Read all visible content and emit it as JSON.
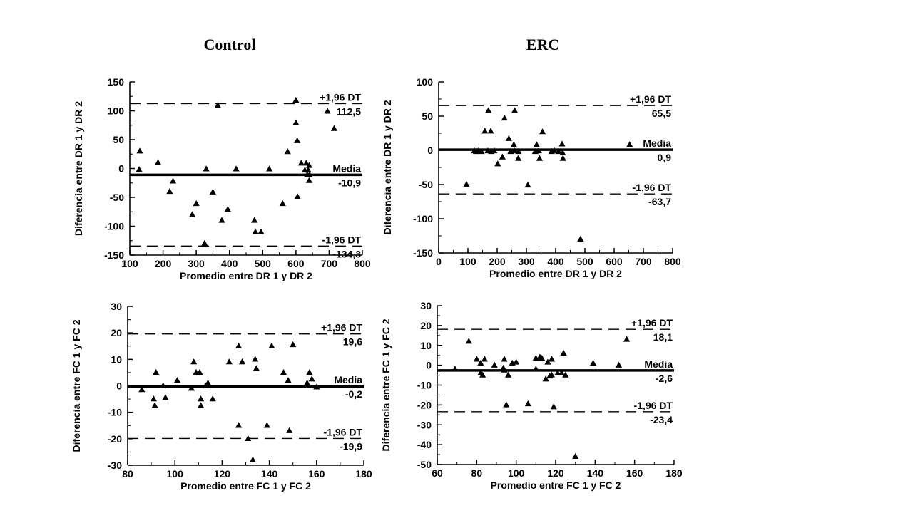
{
  "page": {
    "background": "#ffffff",
    "text_color": "#000000"
  },
  "column_titles": {
    "left": "Control",
    "right": "ERC"
  },
  "chart_data": [
    {
      "id": "control-dr",
      "type": "scatter",
      "group": "Control",
      "xlabel": "Promedio entre DR 1 y DR 2",
      "ylabel": "Diferencia entre DR 1 y DR 2",
      "xlim": [
        100,
        800
      ],
      "ylim": [
        -150,
        150
      ],
      "xticks": [
        100,
        200,
        300,
        400,
        500,
        600,
        700,
        800
      ],
      "yticks": [
        -150,
        -100,
        -50,
        0,
        50,
        100,
        150
      ],
      "x_minor_step": 50,
      "y_minor_step": 25,
      "marker": "triangle",
      "marker_color": "#000000",
      "grid": false,
      "lines": [
        {
          "name": "upper_loa",
          "label": "+1,96 DT",
          "value_label": "112,5",
          "y": 112.5,
          "style": "dashed"
        },
        {
          "name": "mean",
          "label": "Media",
          "value_label": "-10,9",
          "y": -10.9,
          "style": "solid"
        },
        {
          "name": "lower_loa",
          "label": "-1,96 DT",
          "value_label": "-134,3",
          "y": -134.3,
          "style": "dashed"
        }
      ],
      "points": [
        [
          130,
          30
        ],
        [
          128,
          -2
        ],
        [
          185,
          10
        ],
        [
          220,
          -40
        ],
        [
          230,
          -22
        ],
        [
          288,
          -80
        ],
        [
          300,
          -61
        ],
        [
          325,
          -130
        ],
        [
          330,
          -1
        ],
        [
          350,
          -41
        ],
        [
          365,
          109
        ],
        [
          377,
          -90
        ],
        [
          395,
          -71
        ],
        [
          420,
          -1
        ],
        [
          475,
          -90
        ],
        [
          478,
          -110
        ],
        [
          495,
          -110
        ],
        [
          520,
          -1
        ],
        [
          560,
          -61
        ],
        [
          575,
          29
        ],
        [
          600,
          118
        ],
        [
          600,
          79
        ],
        [
          604,
          48
        ],
        [
          605,
          -49
        ],
        [
          616,
          9
        ],
        [
          631,
          9
        ],
        [
          640,
          5
        ],
        [
          627,
          -3
        ],
        [
          637,
          -3
        ],
        [
          634,
          -11
        ],
        [
          641,
          -11
        ],
        [
          640,
          -21
        ],
        [
          695,
          99
        ],
        [
          715,
          69
        ]
      ]
    },
    {
      "id": "erc-dr",
      "type": "scatter",
      "group": "ERC",
      "xlabel": "Promedio entre DR 1 y DR 2",
      "ylabel": "Diferencia entre DR 1 y DR 2",
      "xlim": [
        0,
        800
      ],
      "ylim": [
        -150,
        100
      ],
      "xticks": [
        0,
        100,
        200,
        300,
        400,
        500,
        600,
        700,
        800
      ],
      "yticks": [
        -150,
        -100,
        -50,
        0,
        50,
        100
      ],
      "x_minor_step": 50,
      "y_minor_step": 25,
      "marker": "triangle",
      "marker_color": "#000000",
      "grid": false,
      "lines": [
        {
          "name": "upper_loa",
          "label": "+1,96 DT",
          "value_label": "65,5",
          "y": 65.5,
          "style": "dashed"
        },
        {
          "name": "mean",
          "label": "Media",
          "value_label": "0,9",
          "y": 0.9,
          "style": "solid"
        },
        {
          "name": "lower_loa",
          "label": "-1,96 DT",
          "value_label": "-63,7",
          "y": -63.7,
          "style": "dashed"
        }
      ],
      "points": [
        [
          95,
          -50
        ],
        [
          122,
          -1
        ],
        [
          128,
          -2
        ],
        [
          135,
          -1
        ],
        [
          146,
          -2
        ],
        [
          158,
          28
        ],
        [
          168,
          -1
        ],
        [
          170,
          58
        ],
        [
          178,
          28
        ],
        [
          180,
          -2
        ],
        [
          190,
          -1
        ],
        [
          202,
          -20
        ],
        [
          218,
          -10
        ],
        [
          225,
          47
        ],
        [
          240,
          17
        ],
        [
          246,
          -2
        ],
        [
          257,
          8
        ],
        [
          259,
          -1
        ],
        [
          260,
          58
        ],
        [
          272,
          -12
        ],
        [
          273,
          -2
        ],
        [
          305,
          -51
        ],
        [
          330,
          -2
        ],
        [
          335,
          8
        ],
        [
          342,
          -1
        ],
        [
          345,
          -12
        ],
        [
          355,
          27
        ],
        [
          386,
          -2
        ],
        [
          396,
          -1
        ],
        [
          410,
          -2
        ],
        [
          422,
          9
        ],
        [
          424,
          -4
        ],
        [
          425,
          -12
        ],
        [
          485,
          -130
        ],
        [
          653,
          8
        ]
      ]
    },
    {
      "id": "control-fc",
      "type": "scatter",
      "group": "Control",
      "xlabel": "Promedio entre FC 1 y FC 2",
      "ylabel": "Diferencia entre FC 1 y FC 2",
      "xlim": [
        80,
        180
      ],
      "ylim": [
        -30,
        30
      ],
      "xticks": [
        80,
        100,
        120,
        140,
        160,
        180
      ],
      "yticks": [
        -30,
        -20,
        -10,
        0,
        10,
        20,
        30
      ],
      "x_minor_step": 10,
      "y_minor_step": 5,
      "marker": "triangle",
      "marker_color": "#000000",
      "grid": false,
      "lines": [
        {
          "name": "upper_loa",
          "label": "+1,96 DT",
          "value_label": "19,6",
          "y": 19.6,
          "style": "dashed"
        },
        {
          "name": "mean",
          "label": "Media",
          "value_label": "-0,2",
          "y": -0.2,
          "style": "solid"
        },
        {
          "name": "lower_loa",
          "label": "-1,96 DT",
          "value_label": "-19,9",
          "y": -19.9,
          "style": "dashed"
        }
      ],
      "points": [
        [
          86,
          -1.5
        ],
        [
          91,
          -5
        ],
        [
          91.5,
          -7.5
        ],
        [
          92,
          5
        ],
        [
          95,
          0
        ],
        [
          96,
          -4.5
        ],
        [
          101,
          2
        ],
        [
          107,
          -1
        ],
        [
          108,
          9
        ],
        [
          109,
          5
        ],
        [
          110.5,
          5
        ],
        [
          111,
          -5
        ],
        [
          111,
          -7.5
        ],
        [
          113,
          0
        ],
        [
          114,
          1
        ],
        [
          116,
          -5
        ],
        [
          123,
          9
        ],
        [
          127,
          15
        ],
        [
          127,
          -15
        ],
        [
          128.5,
          9
        ],
        [
          131,
          -20
        ],
        [
          133,
          -28
        ],
        [
          134,
          10
        ],
        [
          134.5,
          6.5
        ],
        [
          139,
          -15
        ],
        [
          141,
          15
        ],
        [
          146,
          5
        ],
        [
          148,
          2
        ],
        [
          148.5,
          -17
        ],
        [
          150,
          15.5
        ],
        [
          156,
          1
        ],
        [
          157,
          5
        ],
        [
          158,
          2.5
        ],
        [
          160,
          -0.5
        ]
      ]
    },
    {
      "id": "erc-fc",
      "type": "scatter",
      "group": "ERC",
      "xlabel": "Promedio entre FC 1 y FC 2",
      "ylabel": "Diferencia entre FC 1 y FC 2",
      "xlim": [
        60,
        180
      ],
      "ylim": [
        -50,
        30
      ],
      "xticks": [
        60,
        80,
        100,
        120,
        140,
        160,
        180
      ],
      "yticks": [
        -50,
        -40,
        -30,
        -20,
        -10,
        0,
        10,
        20,
        30
      ],
      "x_minor_step": 10,
      "y_minor_step": 5,
      "marker": "triangle",
      "marker_color": "#000000",
      "grid": false,
      "lines": [
        {
          "name": "upper_loa",
          "label": "+1,96 DT",
          "value_label": "18,1",
          "y": 18.1,
          "style": "dashed"
        },
        {
          "name": "mean",
          "label": "Media",
          "value_label": "-2,6",
          "y": -2.6,
          "style": "solid"
        },
        {
          "name": "lower_loa",
          "label": "-1,96 DT",
          "value_label": "-23,4",
          "y": -23.4,
          "style": "dashed"
        }
      ],
      "points": [
        [
          69,
          -2
        ],
        [
          76,
          12
        ],
        [
          80,
          3
        ],
        [
          82,
          1
        ],
        [
          82,
          -4
        ],
        [
          83,
          -5
        ],
        [
          84,
          3
        ],
        [
          89,
          0
        ],
        [
          93.5,
          -1.5
        ],
        [
          94,
          3
        ],
        [
          94,
          -2.5
        ],
        [
          95,
          -20
        ],
        [
          96,
          -5
        ],
        [
          98,
          1
        ],
        [
          100,
          1.5
        ],
        [
          106,
          -19.5
        ],
        [
          110,
          3.5
        ],
        [
          110,
          -2
        ],
        [
          112,
          4
        ],
        [
          113,
          3.5
        ],
        [
          116,
          1.5
        ],
        [
          115,
          -7
        ],
        [
          117,
          -5.5
        ],
        [
          118,
          3
        ],
        [
          118,
          -5
        ],
        [
          119,
          -21
        ],
        [
          121,
          -4
        ],
        [
          123,
          -4
        ],
        [
          124,
          6
        ],
        [
          125,
          -5
        ],
        [
          130,
          -46
        ],
        [
          139,
          1
        ],
        [
          152,
          0
        ],
        [
          156,
          13
        ]
      ]
    }
  ]
}
